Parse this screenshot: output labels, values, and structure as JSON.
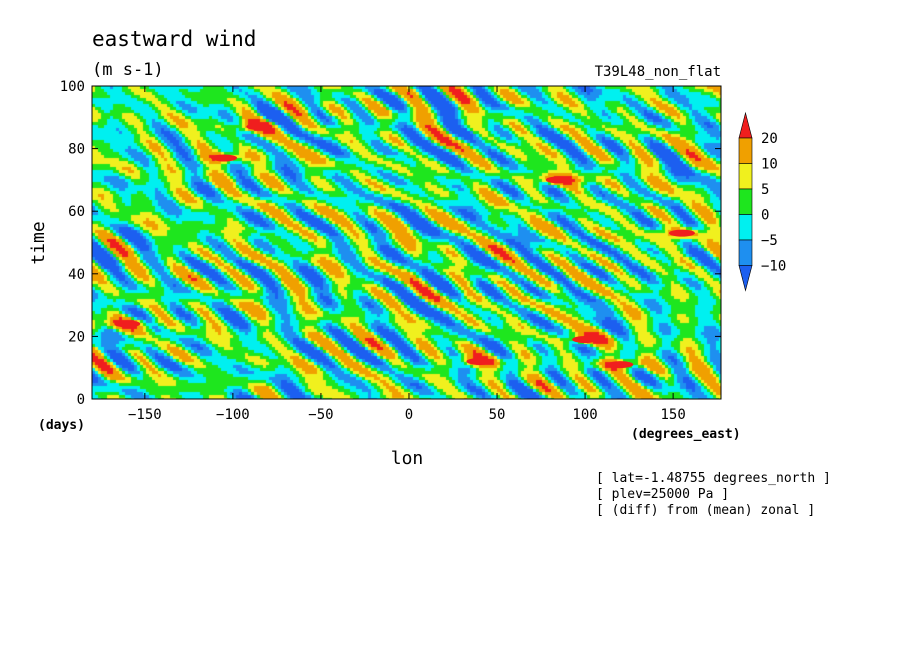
{
  "chart_data": {
    "type": "heatmap",
    "title": "eastward wind",
    "units": "(m s-1)",
    "experiment": "T39L48_non_flat",
    "xlabel": "lon",
    "ylabel": "time",
    "x_units": "(degrees_east)",
    "y_units": "(days)",
    "xlim": [
      -180,
      177.1875
    ],
    "ylim": [
      0,
      100
    ],
    "x_ticks": [
      -150,
      -100,
      -50,
      0,
      50,
      100,
      150
    ],
    "y_ticks": [
      0,
      20,
      40,
      60,
      80,
      100
    ],
    "colorbar": {
      "levels": [
        -10,
        -5,
        0,
        5,
        10,
        20
      ],
      "tick_labels": [
        "20",
        "10",
        "5",
        "0",
        "-5",
        "-10"
      ],
      "colors": [
        "#1c5ff0",
        "#1e8ff0",
        "#00f0f0",
        "#1ee61e",
        "#f0f01e",
        "#f0a000",
        "#f01e1e"
      ],
      "extend": "both"
    },
    "highlight_regions": [
      {
        "lon": -85,
        "day": 87,
        "value": 22
      },
      {
        "lon": 85,
        "day": 70,
        "value": 22
      },
      {
        "lon": 100,
        "day": 19,
        "value": 21
      },
      {
        "lon": 120,
        "day": 11,
        "value": 20
      },
      {
        "lon": 155,
        "day": 53,
        "value": 20
      },
      {
        "lon": -160,
        "day": 24,
        "value": 20
      },
      {
        "lon": 40,
        "day": 12,
        "value": 20
      },
      {
        "lon": -105,
        "day": 77,
        "value": 20
      }
    ],
    "notes": [
      "[ lat=-1.48755 degrees_north ]",
      "[ plev=25000 Pa ]",
      "[ (diff) from (mean) zonal ]"
    ]
  }
}
